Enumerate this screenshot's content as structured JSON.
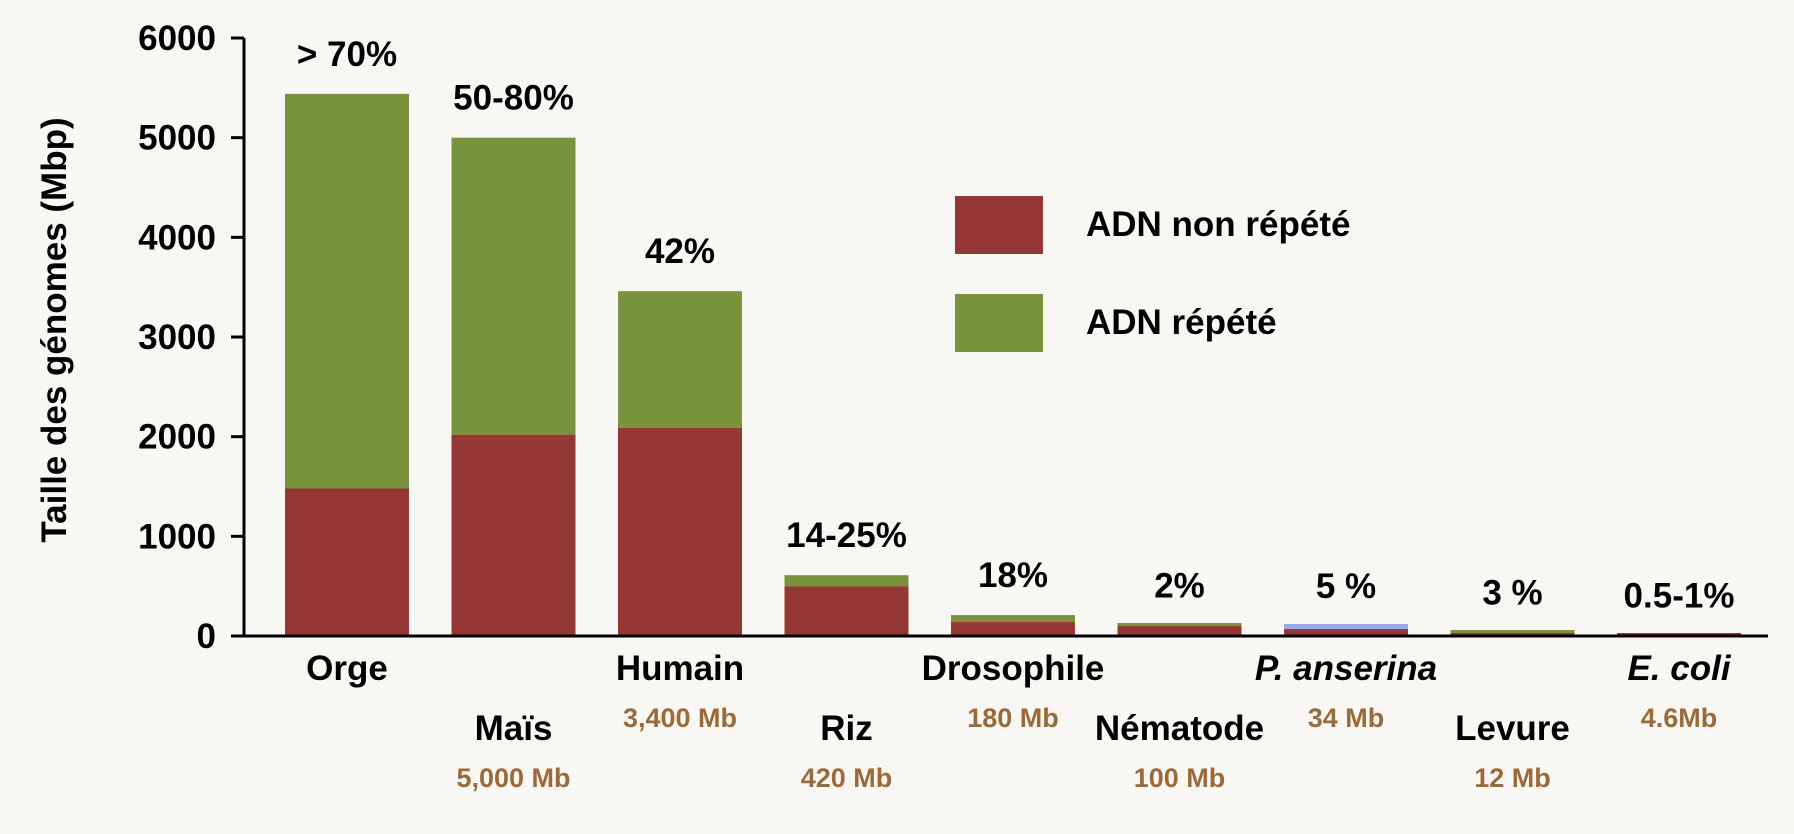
{
  "chart_data": {
    "type": "bar",
    "stacked": true,
    "ylabel": "Taille des génomes (Mbp)",
    "ylim": [
      0,
      6000
    ],
    "yticks": [
      0,
      1000,
      2000,
      3000,
      4000,
      5000,
      6000
    ],
    "grid": false,
    "legend_position": "top-right",
    "categories": [
      {
        "name": "Orge",
        "italic": false,
        "size": "",
        "percent": "> 70%",
        "row": 0
      },
      {
        "name": "Maïs",
        "italic": false,
        "size": "5,000 Mb",
        "percent": "50-80%",
        "row": 1
      },
      {
        "name": "Humain",
        "italic": false,
        "size": "3,400 Mb",
        "percent": "42%",
        "row": 0
      },
      {
        "name": "Riz",
        "italic": false,
        "size": "420 Mb",
        "percent": "14-25%",
        "row": 1
      },
      {
        "name": "Drosophile",
        "italic": false,
        "size": "180 Mb",
        "percent": "18%",
        "row": 0
      },
      {
        "name": "Nématode",
        "italic": false,
        "size": "100 Mb",
        "percent": "2%",
        "row": 1
      },
      {
        "name": "P. anserina",
        "italic": true,
        "size": "34 Mb",
        "percent": "5 %",
        "row": 0
      },
      {
        "name": "Levure",
        "italic": false,
        "size": "12 Mb",
        "percent": "3 %",
        "row": 1
      },
      {
        "name": "E. coli",
        "italic": true,
        "size": "4.6Mb",
        "percent": "0.5-1%",
        "row": 0
      }
    ],
    "series": [
      {
        "name": "ADN non répété",
        "color": "#953735",
        "values": [
          1480,
          2020,
          2090,
          500,
          140,
          100,
          70,
          30,
          5
        ]
      },
      {
        "name": "ADN répété",
        "color": "#77933c",
        "values": [
          3960,
          2980,
          1370,
          110,
          70,
          5,
          30,
          5,
          0
        ]
      }
    ],
    "highlight_color": "#9aa7e8"
  }
}
